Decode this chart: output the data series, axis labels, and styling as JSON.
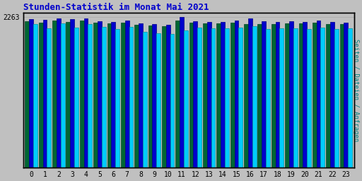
{
  "title": "Stunden-Statistik im Monat Mai 2021",
  "title_color": "#0000cc",
  "ylabel": "Seiten / Dateien / Anfragen",
  "ylabel_color": "#008080",
  "background_color": "#c0c0c0",
  "plot_bg_color": "#c0c0c0",
  "border_color": "#000000",
  "ytick_label": "2263",
  "ytick_value": 2263,
  "hours": [
    0,
    1,
    2,
    3,
    4,
    5,
    6,
    7,
    8,
    9,
    10,
    11,
    12,
    13,
    14,
    15,
    16,
    17,
    18,
    19,
    20,
    21,
    22,
    23
  ],
  "seiten": [
    2200,
    2170,
    2210,
    2190,
    2205,
    2175,
    2160,
    2170,
    2140,
    2130,
    2120,
    2210,
    2170,
    2165,
    2165,
    2175,
    2155,
    2155,
    2155,
    2165,
    2160,
    2175,
    2155,
    2150
  ],
  "dateien": [
    2230,
    2215,
    2235,
    2225,
    2235,
    2200,
    2185,
    2205,
    2160,
    2155,
    2148,
    2263,
    2195,
    2190,
    2190,
    2205,
    2240,
    2195,
    2190,
    2200,
    2190,
    2205,
    2185,
    2180
  ],
  "anfragen": [
    2155,
    2095,
    2165,
    2100,
    2155,
    2115,
    2080,
    2115,
    2040,
    2015,
    2000,
    2060,
    2100,
    2095,
    2090,
    2105,
    2120,
    2075,
    2085,
    2095,
    2080,
    2105,
    2080,
    2090
  ],
  "color_seiten": "#006633",
  "color_dateien": "#0000cc",
  "color_anfragen": "#00ccff",
  "bar_edge_seiten": "#004422",
  "bar_edge_dateien": "#000088",
  "bar_edge_anfragen": "#009999",
  "bar_width": 0.3,
  "ylim_min": 0,
  "ylim_max": 2320,
  "grid_color": "#aaaaaa",
  "figsize": [
    5.12,
    2.56
  ],
  "dpi": 100
}
